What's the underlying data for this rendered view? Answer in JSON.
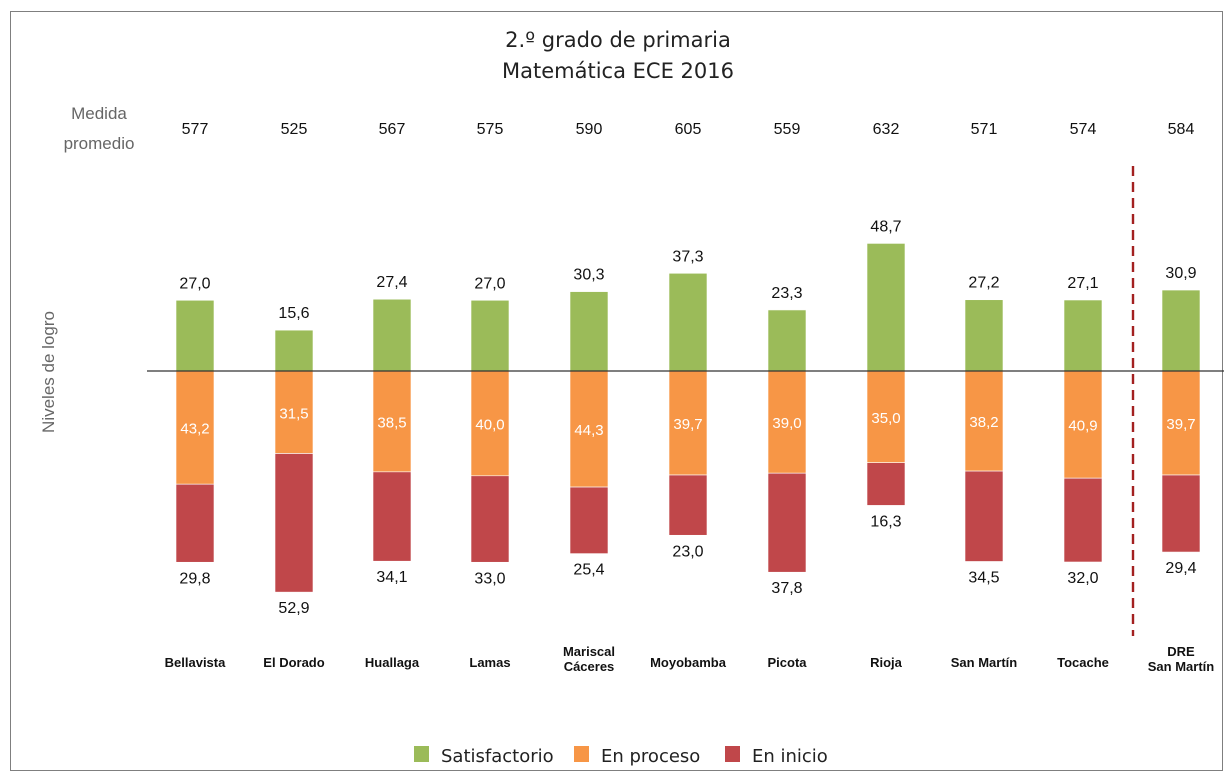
{
  "chart_data": {
    "type": "bar",
    "subtype": "diverging-stacked",
    "title": "2.º grado de primaria",
    "subtitle": "Matemática ECE 2016",
    "ylabel": "Niveles de logro",
    "mean_label_lines": [
      "Medida",
      "promedio"
    ],
    "categories": [
      [
        "Bellavista"
      ],
      [
        "El Dorado"
      ],
      [
        "Huallaga"
      ],
      [
        "Lamas"
      ],
      [
        "Mariscal",
        "Cáceres"
      ],
      [
        "Moyobamba"
      ],
      [
        "Picota"
      ],
      [
        "Rioja"
      ],
      [
        "San Martín"
      ],
      [
        "Tocache"
      ],
      [
        "DRE",
        "San Martín"
      ]
    ],
    "medida_promedio": [
      "577",
      "525",
      "567",
      "575",
      "590",
      "605",
      "559",
      "632",
      "571",
      "574",
      "584"
    ],
    "series": [
      {
        "name": "Satisfactorio",
        "color": "#9bbb59",
        "values": [
          27.0,
          15.6,
          27.4,
          27.0,
          30.3,
          37.3,
          23.3,
          48.7,
          27.2,
          27.1,
          30.9
        ],
        "labels": [
          "27,0",
          "15,6",
          "27,4",
          "27,0",
          "30,3",
          "37,3",
          "23,3",
          "48,7",
          "27,2",
          "27,1",
          "30,9"
        ]
      },
      {
        "name": "En proceso",
        "color": "#f79646",
        "values": [
          43.2,
          31.5,
          38.5,
          40.0,
          44.3,
          39.7,
          39.0,
          35.0,
          38.2,
          40.9,
          39.7
        ],
        "labels": [
          "43,2",
          "31,5",
          "38,5",
          "40,0",
          "44,3",
          "39,7",
          "39,0",
          "35,0",
          "38,2",
          "40,9",
          "39,7"
        ]
      },
      {
        "name": "En inicio",
        "color": "#c0474a",
        "values": [
          29.8,
          52.9,
          34.1,
          33.0,
          25.4,
          23.0,
          37.8,
          16.3,
          34.5,
          32.0,
          29.4
        ],
        "labels": [
          "29,8",
          "52,9",
          "34,1",
          "33,0",
          "25,4",
          "23,0",
          "37,8",
          "16,3",
          "34,5",
          "32,0",
          "29,4"
        ]
      }
    ],
    "separator_color": "#a32020",
    "grid": false,
    "legend_position": "bottom"
  }
}
